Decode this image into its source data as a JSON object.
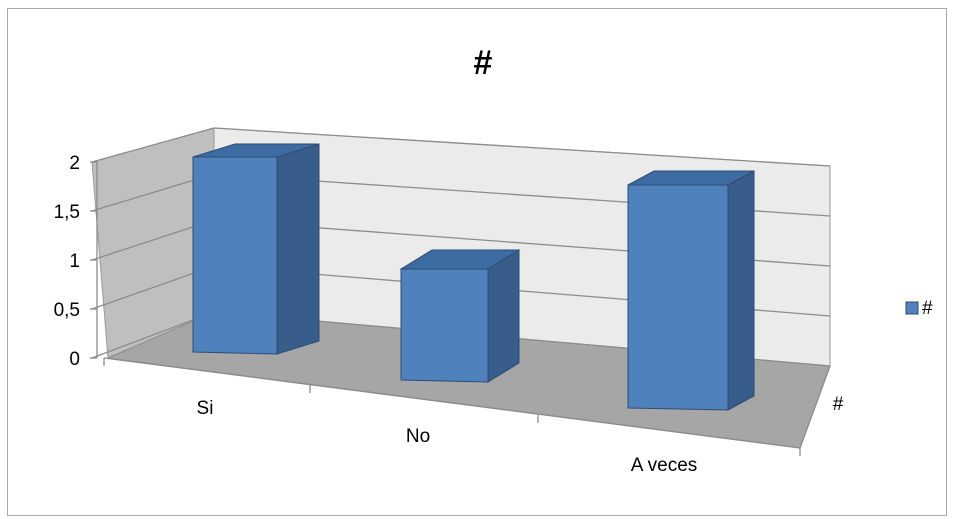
{
  "chart_data": {
    "type": "bar",
    "title": "#",
    "categories": [
      "Si",
      "No",
      "A veces"
    ],
    "series": [
      {
        "name": "#",
        "values": [
          2,
          1,
          2
        ]
      }
    ],
    "ylim": [
      0,
      2
    ],
    "yticks": [
      "0",
      "0,5",
      "1",
      "1,5",
      "2"
    ],
    "depth_axis_label": "#",
    "legend": "right",
    "grid": true,
    "colors": {
      "bar_front": "#4f81bd",
      "bar_side": "#385d8a",
      "bar_top": "#3f6ba3",
      "bar_edge": "#2c4d75",
      "floor": "#a6a6a6",
      "back_wall": "#ebebeb",
      "side_wall": "#bfbfbf",
      "grid": "#8c8c8c"
    }
  }
}
